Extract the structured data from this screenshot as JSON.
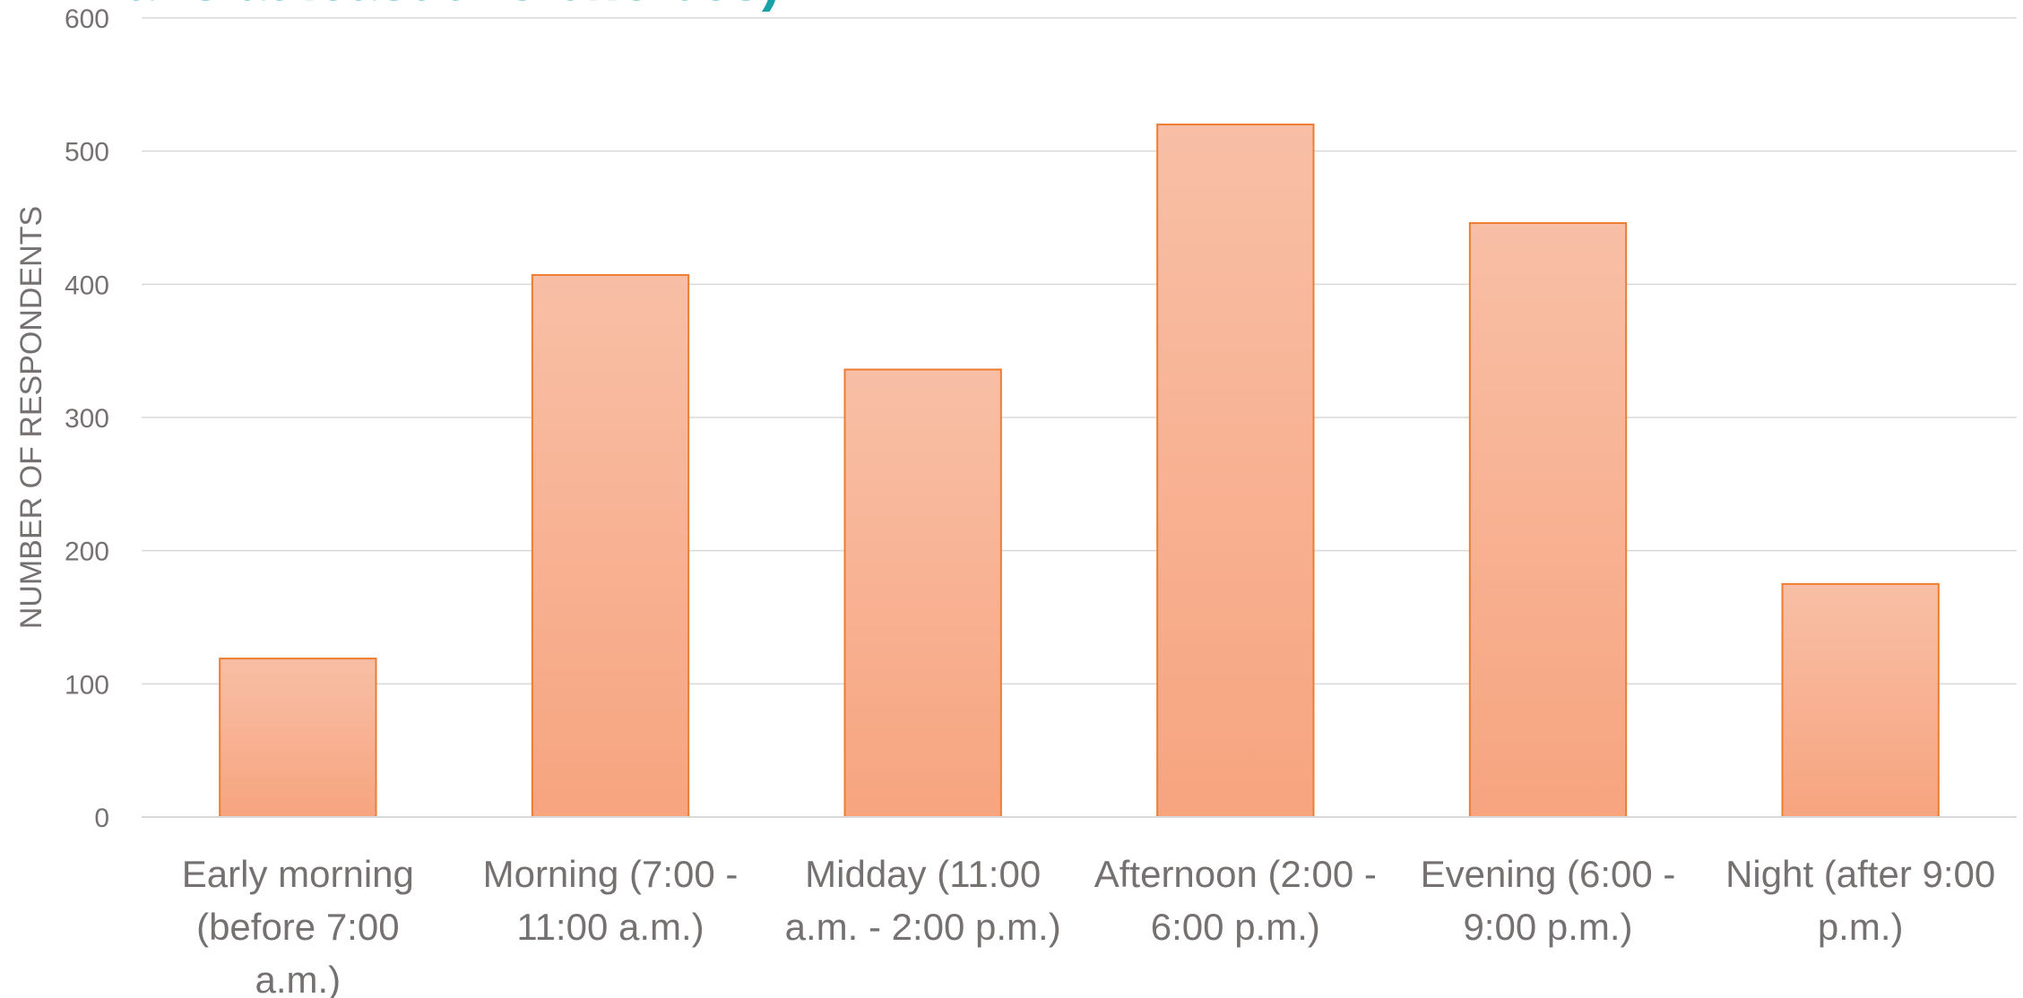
{
  "chart_data": {
    "type": "bar",
    "title": "",
    "title_fragment": "ans at least two choices).",
    "xlabel": "",
    "ylabel": "NUMBER OF RESPONDENTS",
    "ylim": [
      0,
      600
    ],
    "yticks": [
      0,
      100,
      200,
      300,
      400,
      500,
      600
    ],
    "categories": [
      [
        "Early morning",
        "(before 7:00",
        "a.m.)"
      ],
      [
        "Morning (7:00 -",
        "11:00 a.m.)"
      ],
      [
        "Midday (11:00",
        "a.m. - 2:00 p.m.)"
      ],
      [
        "Afternoon (2:00 -",
        "6:00 p.m.)"
      ],
      [
        "Evening (6:00 -",
        "9:00 p.m.)"
      ],
      [
        "Night (after 9:00",
        "p.m.)"
      ]
    ],
    "values": [
      119,
      407,
      336,
      520,
      446,
      175
    ],
    "grid": true,
    "legend": "none",
    "colors": {
      "bar_top": "#f8bfa6",
      "bar_bottom": "#f7a47f",
      "bar_border": "#ed7d31",
      "grid": "#d9d9d9",
      "axis_text": "#767171",
      "title": "#17a2a7"
    }
  }
}
